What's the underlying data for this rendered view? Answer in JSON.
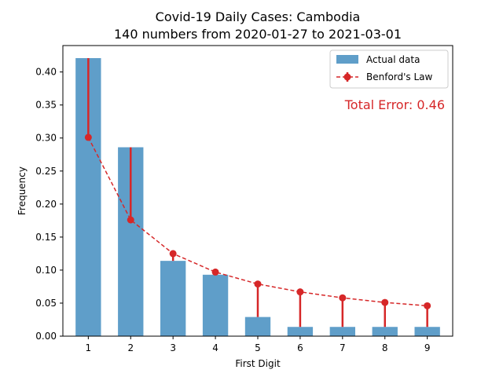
{
  "chart_data": {
    "type": "bar",
    "title_line1": "Covid-19 Daily Cases: Cambodia",
    "title_line2": "140 numbers from 2020-01-27 to 2021-03-01",
    "xlabel": "First Digit",
    "ylabel": "Frequency",
    "categories": [
      "1",
      "2",
      "3",
      "4",
      "5",
      "6",
      "7",
      "8",
      "9"
    ],
    "ylim": [
      0,
      0.44
    ],
    "yticks": [
      0.0,
      0.05,
      0.1,
      0.15,
      0.2,
      0.25,
      0.3,
      0.35,
      0.4
    ],
    "ytick_labels": [
      "0.00",
      "0.05",
      "0.10",
      "0.15",
      "0.20",
      "0.25",
      "0.30",
      "0.35",
      "0.40"
    ],
    "grid": false,
    "legend_position": "top-right",
    "series": [
      {
        "name": "Actual data",
        "kind": "bar",
        "color": "#5f9ec9",
        "values": [
          0.421,
          0.286,
          0.114,
          0.093,
          0.029,
          0.014,
          0.014,
          0.014,
          0.014
        ]
      },
      {
        "name": "Benford's Law",
        "kind": "line-dashed-markers",
        "color": "#d62728",
        "values": [
          0.301,
          0.176,
          0.125,
          0.097,
          0.079,
          0.067,
          0.058,
          0.051,
          0.046
        ]
      }
    ],
    "annotation": {
      "text": "Total Error: 0.46",
      "color": "#d62728"
    }
  }
}
